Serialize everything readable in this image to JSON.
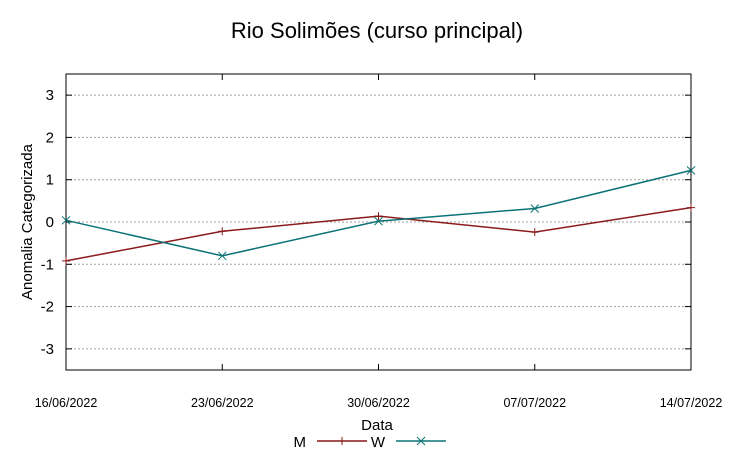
{
  "chart_data": {
    "type": "line",
    "title": "Rio Solimões (curso principal)",
    "xlabel": "Data",
    "ylabel": "Anomalia Categorizada",
    "categories": [
      "16/06/2022",
      "23/06/2022",
      "30/06/2022",
      "07/07/2022",
      "14/07/2022"
    ],
    "ylim": [
      -3.5,
      3.5
    ],
    "yticks": [
      "3",
      "2",
      "1",
      "0",
      "-1",
      "-2",
      "-3"
    ],
    "grid": true,
    "legend_position": "bottom-center",
    "series": [
      {
        "name": "M",
        "values": [
          -0.92,
          -0.22,
          0.14,
          -0.24,
          0.34
        ],
        "color": "#8b1a1a",
        "marker": "plus"
      },
      {
        "name": "W",
        "values": [
          0.04,
          -0.8,
          0.02,
          0.32,
          1.22
        ],
        "color": "#0b7377",
        "marker": "cross"
      }
    ]
  }
}
